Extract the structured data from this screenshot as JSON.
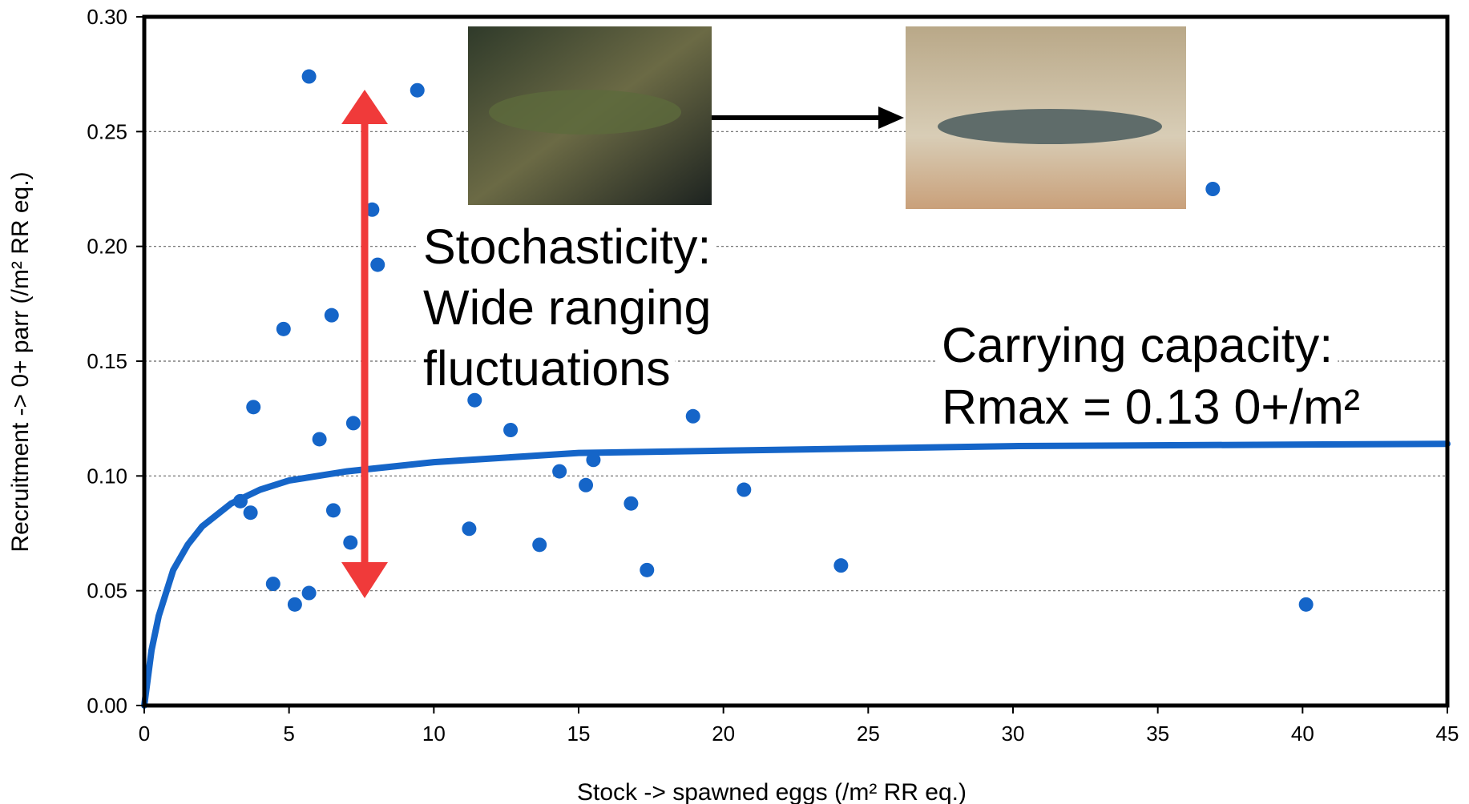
{
  "chart_data": {
    "type": "scatter",
    "xlabel": "Stock -> spawned eggs  (/m² RR eq.)",
    "ylabel": "Recruitment -> 0+ parr (/m² RR eq.)",
    "xlim": [
      0,
      45
    ],
    "xticks": [
      0,
      5,
      10,
      15,
      20,
      25,
      30,
      35,
      40,
      45
    ],
    "ylim": [
      0,
      0.3
    ],
    "yticks": [
      {
        "value": 0,
        "label": "0.00"
      },
      {
        "value": 0.05,
        "label": "0.05"
      },
      {
        "value": 0.1,
        "label": "0.10"
      },
      {
        "value": 0.15,
        "label": "0.15"
      },
      {
        "value": 0.2,
        "label": "0.20"
      },
      {
        "value": 0.25,
        "label": "0.25"
      },
      {
        "value": 0.3,
        "label": "0.30"
      }
    ],
    "grid": true,
    "series": [
      {
        "type": "scatter",
        "color": "#1565c8",
        "x": [
          5.69,
          9.43,
          36.9,
          7.87,
          8.06,
          4.81,
          6.47,
          3.77,
          11.41,
          18.95,
          7.22,
          6.05,
          12.65,
          14.34,
          15.51,
          15.25,
          20.71,
          16.81,
          3.32,
          3.67,
          6.53,
          11.22,
          13.65,
          7.12,
          17.36,
          24.06,
          4.45,
          5.69,
          5.2,
          40.12
        ],
        "values": [
          0.274,
          0.268,
          0.225,
          0.216,
          0.192,
          0.164,
          0.17,
          0.13,
          0.133,
          0.126,
          0.123,
          0.116,
          0.12,
          0.102,
          0.107,
          0.096,
          0.094,
          0.088,
          0.089,
          0.084,
          0.085,
          0.077,
          0.07,
          0.071,
          0.059,
          0.061,
          0.053,
          0.049,
          0.044,
          0.044
        ]
      },
      {
        "type": "line",
        "color": "#1565c8",
        "x": [
          0,
          0.25,
          0.5,
          1,
          1.5,
          2,
          3,
          4,
          5,
          7,
          10,
          15,
          20,
          30,
          45
        ],
        "values": [
          0,
          0.024,
          0.039,
          0.059,
          0.07,
          0.078,
          0.088,
          0.094,
          0.098,
          0.102,
          0.106,
          0.11,
          0.111,
          0.113,
          0.114
        ]
      }
    ],
    "annotations": [
      [
        "Stochasticity:",
        "Wide ranging",
        "fluctuations"
      ],
      [
        "Carrying capacity:",
        "Rmax = 0.13 0+/m²"
      ]
    ]
  }
}
